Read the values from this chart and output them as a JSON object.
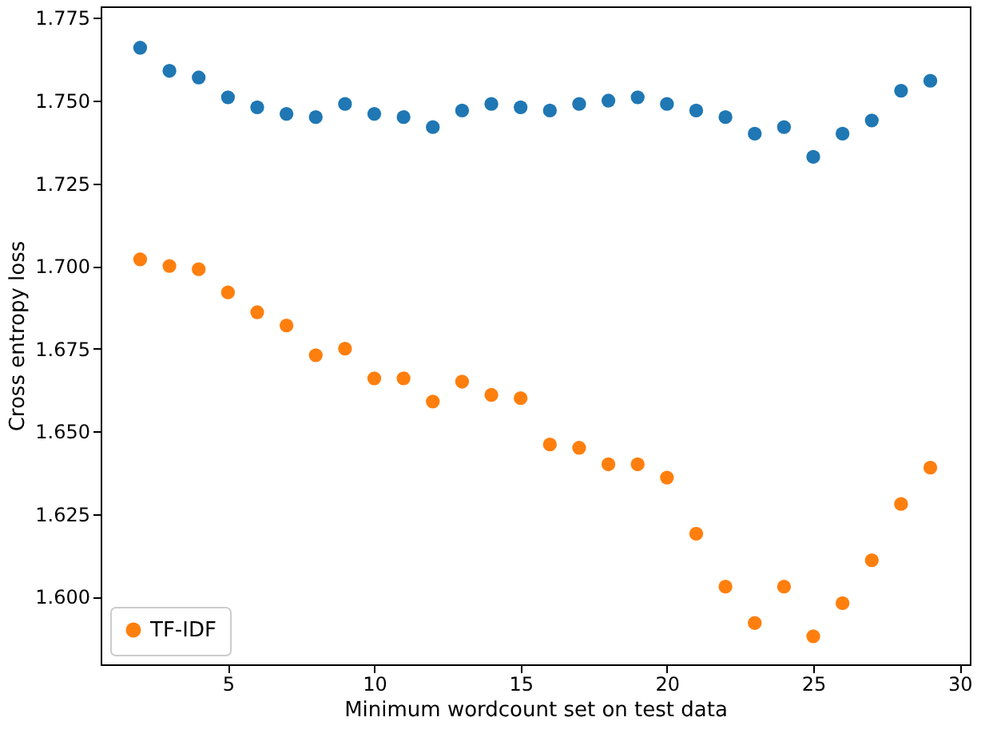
{
  "chart_data": {
    "type": "scatter",
    "xlabel": "Minimum wordcount set on test data",
    "ylabel": "Cross entropy loss",
    "x": [
      2,
      3,
      4,
      5,
      6,
      7,
      8,
      9,
      10,
      11,
      12,
      13,
      14,
      15,
      16,
      17,
      18,
      19,
      20,
      21,
      22,
      23,
      24,
      25,
      26,
      27,
      28,
      29
    ],
    "series": [
      {
        "color": "#1f77b4",
        "values": [
          1.766,
          1.759,
          1.757,
          1.751,
          1.748,
          1.746,
          1.745,
          1.749,
          1.746,
          1.745,
          1.742,
          1.747,
          1.749,
          1.748,
          1.747,
          1.749,
          1.75,
          1.751,
          1.749,
          1.747,
          1.745,
          1.74,
          1.742,
          1.733,
          1.74,
          1.744,
          1.753,
          1.756
        ]
      },
      {
        "name": "TF-IDF",
        "color": "#ff7f0e",
        "values": [
          1.702,
          1.7,
          1.699,
          1.692,
          1.686,
          1.682,
          1.673,
          1.675,
          1.666,
          1.666,
          1.659,
          1.665,
          1.661,
          1.66,
          1.646,
          1.645,
          1.64,
          1.64,
          1.636,
          1.619,
          1.603,
          1.592,
          1.603,
          1.588,
          1.598,
          1.611,
          1.628,
          1.639
        ]
      }
    ],
    "xlim": [
      0.65,
      30.35
    ],
    "ylim": [
      1.5795,
      1.7785
    ],
    "xticks": [
      5,
      10,
      15,
      20,
      25,
      30
    ],
    "yticks": [
      {
        "value": 1.6,
        "label": "1.600"
      },
      {
        "value": 1.625,
        "label": "1.625"
      },
      {
        "value": 1.65,
        "label": "1.650"
      },
      {
        "value": 1.675,
        "label": "1.675"
      },
      {
        "value": 1.7,
        "label": "1.700"
      },
      {
        "value": 1.725,
        "label": "1.725"
      },
      {
        "value": 1.75,
        "label": "1.750"
      },
      {
        "value": 1.775,
        "label": "1.775"
      }
    ],
    "legend": "bottom left",
    "marker": "circle",
    "grid": false
  }
}
